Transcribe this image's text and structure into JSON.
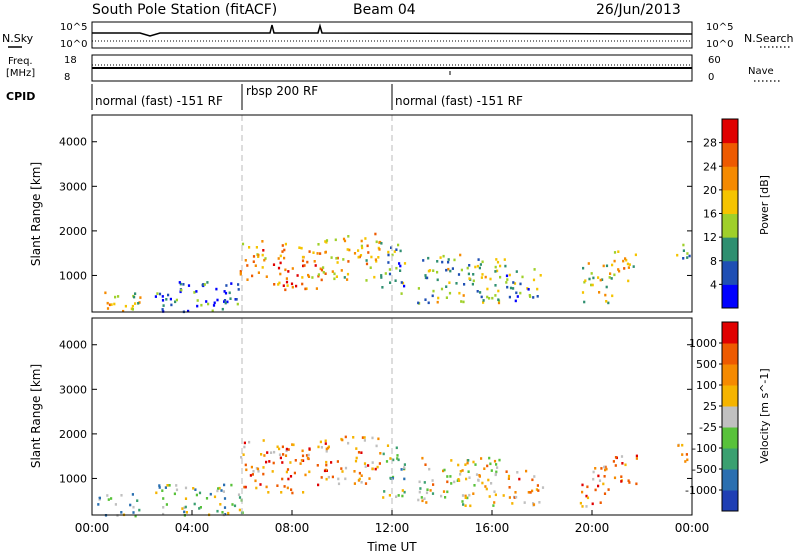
{
  "header": {
    "station": "South Pole Station (fitACF)",
    "beam": "Beam 04",
    "date": "26/Jun/2013"
  },
  "noise_panel": {
    "left_label": "N.Sky",
    "right_label": "N.Search",
    "left_ticks": [
      "10^5",
      "10^0"
    ],
    "right_ticks": [
      "10^5",
      "10^0"
    ]
  },
  "freq_panel": {
    "left_label_1": "Freq.",
    "left_label_2": "[MHz]",
    "right_label": "Nave",
    "left_ticks": [
      "18",
      "8"
    ],
    "right_ticks": [
      "60",
      "0"
    ]
  },
  "cpid": {
    "label": "CPID",
    "segments": [
      {
        "label": "normal (fast) -151 RF",
        "start": 0,
        "end": 6
      },
      {
        "label": "rbsp 200 RF",
        "start": 6,
        "end": 12
      },
      {
        "label": "normal (fast) -151 RF",
        "start": 12,
        "end": 24
      }
    ]
  },
  "chart_data": [
    {
      "type": "heatmap",
      "quantity": "Power",
      "ylabel": "Slant Range [km]",
      "xlabel": "",
      "xlim": [
        0,
        24
      ],
      "ylim": [
        180,
        4600
      ],
      "yticks": [
        1000,
        2000,
        3000,
        4000
      ],
      "colorbar": {
        "label": "Power [dB]",
        "ticks": [
          "4",
          "8",
          "12",
          "16",
          "20",
          "24",
          "28"
        ],
        "colors": [
          "#0000ff",
          "#1f4fb4",
          "#2f8f70",
          "#9fd02a",
          "#f5c400",
          "#f58a00",
          "#ee5a00",
          "#e00000"
        ]
      },
      "regions": [
        {
          "t": [
            0.2,
            1.9
          ],
          "r": [
            180,
            700
          ],
          "level": 0.55
        },
        {
          "t": [
            5.9,
            7.0
          ],
          "r": [
            800,
            1800
          ],
          "level": 0.65
        },
        {
          "t": [
            7.0,
            9.0
          ],
          "r": [
            700,
            1750
          ],
          "level": 0.72
        },
        {
          "t": [
            9.0,
            11.5
          ],
          "r": [
            900,
            2000
          ],
          "level": 0.6
        },
        {
          "t": [
            11.5,
            12.5
          ],
          "r": [
            600,
            1800
          ],
          "level": 0.35
        },
        {
          "t": [
            13.0,
            16.5
          ],
          "r": [
            400,
            1500
          ],
          "level": 0.4
        },
        {
          "t": [
            16.5,
            18.0
          ],
          "r": [
            400,
            1200
          ],
          "level": 0.3
        },
        {
          "t": [
            19.5,
            20.8
          ],
          "r": [
            400,
            1300
          ],
          "level": 0.5
        },
        {
          "t": [
            20.8,
            21.8
          ],
          "r": [
            900,
            1600
          ],
          "level": 0.55
        },
        {
          "t": [
            23.3,
            23.9
          ],
          "r": [
            1300,
            1800
          ],
          "level": 0.4
        },
        {
          "t": [
            2.5,
            6.0
          ],
          "r": [
            180,
            900
          ],
          "level": 0.2
        }
      ]
    },
    {
      "type": "heatmap",
      "quantity": "Velocity",
      "ylabel": "Slant Range [km]",
      "xlabel": "Time UT",
      "xlim": [
        0,
        24
      ],
      "ylim": [
        180,
        4600
      ],
      "yticks": [
        1000,
        2000,
        3000,
        4000
      ],
      "xticks": [
        "00:00",
        "04:00",
        "08:00",
        "12:00",
        "16:00",
        "20:00",
        "00:00"
      ],
      "colorbar": {
        "label": "Velocity [m s^-1]",
        "ticks": [
          "1000",
          "500",
          "100",
          "25",
          "-25",
          "-100",
          "-500",
          "-1000"
        ],
        "colors": [
          "#1f3fb4",
          "#2a6fb0",
          "#3aa070",
          "#58c23a",
          "#c0c0c0",
          "#f5b400",
          "#f58a00",
          "#ee5a00",
          "#e00000"
        ]
      },
      "regions": [
        {
          "t": [
            0.2,
            1.9
          ],
          "r": [
            180,
            700
          ],
          "level": 0.35
        },
        {
          "t": [
            5.9,
            7.0
          ],
          "r": [
            800,
            1900
          ],
          "level": 0.72
        },
        {
          "t": [
            7.0,
            9.0
          ],
          "r": [
            700,
            1800
          ],
          "level": 0.75
        },
        {
          "t": [
            9.0,
            11.5
          ],
          "r": [
            900,
            2000
          ],
          "level": 0.7
        },
        {
          "t": [
            11.5,
            12.5
          ],
          "r": [
            600,
            1800
          ],
          "level": 0.4
        },
        {
          "t": [
            13.0,
            16.5
          ],
          "r": [
            400,
            1500
          ],
          "level": 0.55
        },
        {
          "t": [
            16.5,
            18.0
          ],
          "r": [
            400,
            1200
          ],
          "level": 0.7
        },
        {
          "t": [
            19.5,
            20.8
          ],
          "r": [
            400,
            1300
          ],
          "level": 0.72
        },
        {
          "t": [
            20.8,
            21.8
          ],
          "r": [
            900,
            1600
          ],
          "level": 0.72
        },
        {
          "t": [
            23.3,
            23.9
          ],
          "r": [
            1300,
            1800
          ],
          "level": 0.65
        },
        {
          "t": [
            2.5,
            6.0
          ],
          "r": [
            180,
            900
          ],
          "level": 0.4
        }
      ]
    }
  ]
}
